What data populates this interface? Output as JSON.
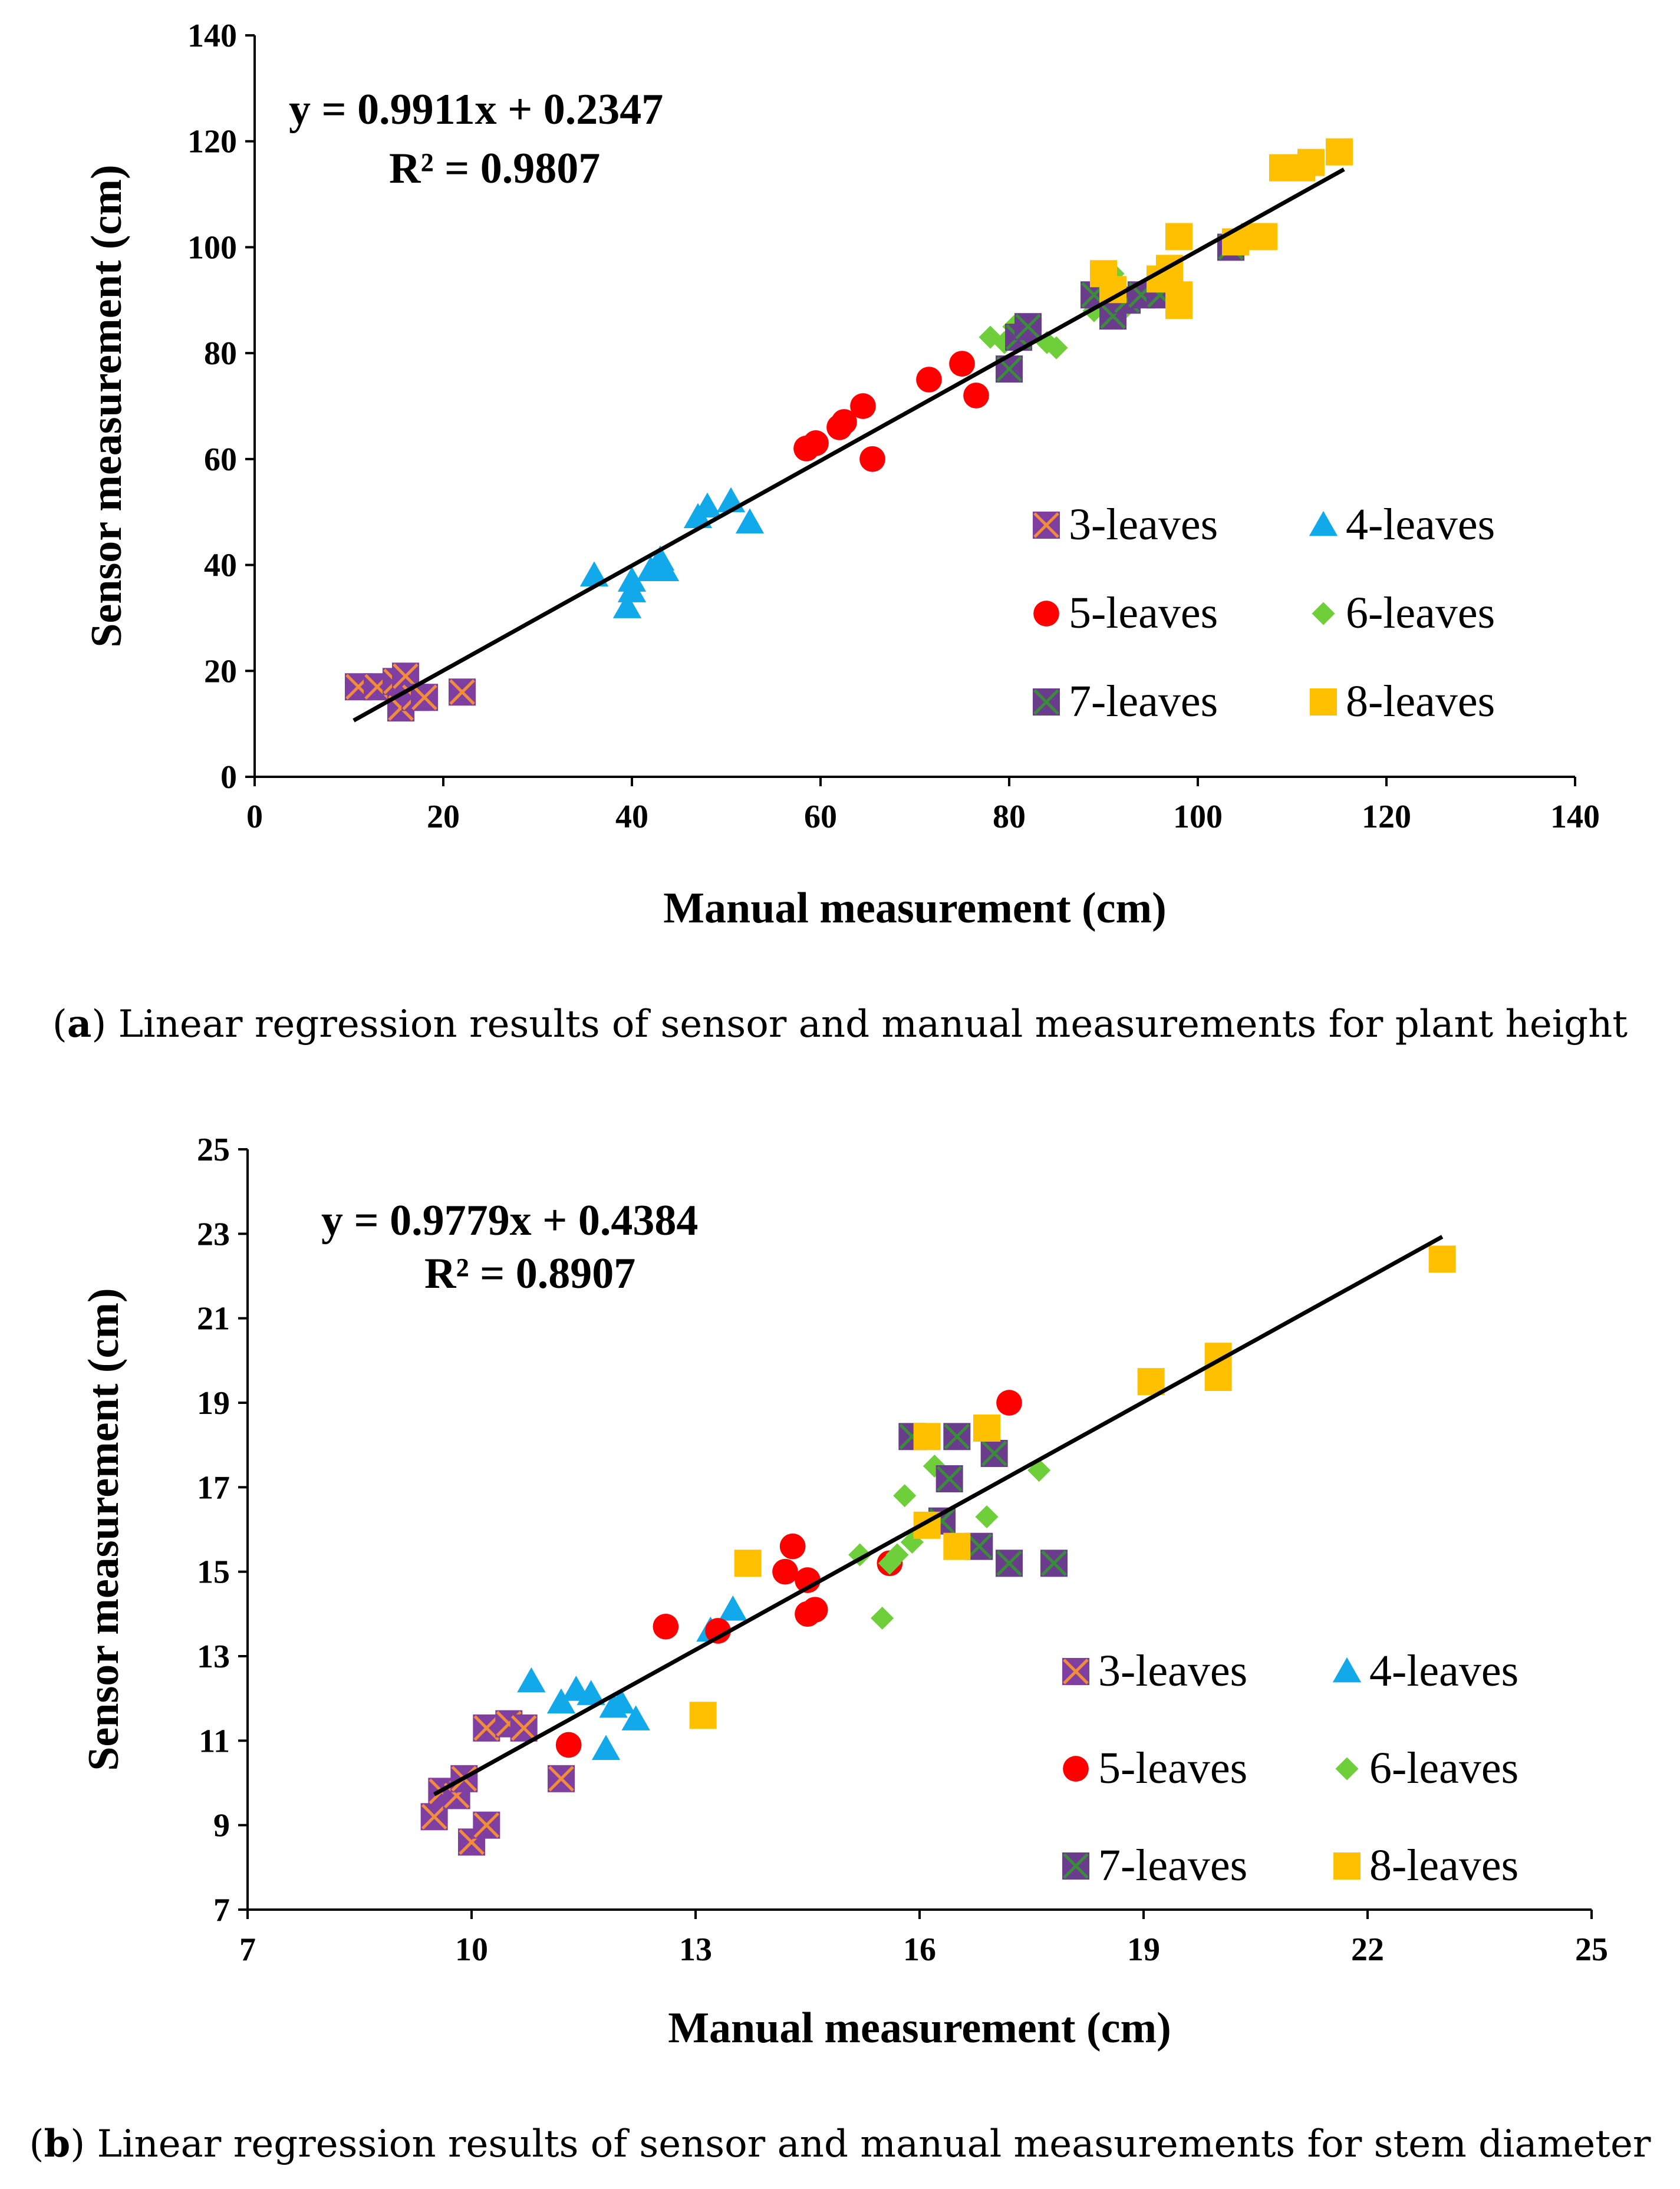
{
  "colors": {
    "3-leaves-fill": "#7f3fa0",
    "3-leaves-cross": "#f28c3a",
    "4-leaves": "#11a9ea",
    "5-leaves": "#ff0000",
    "6-leaves": "#6fcf3a",
    "7-leaves-fill": "#6a3d8c",
    "7-leaves-cross": "#3a8c3a",
    "8-leaves": "#ffc000",
    "regression": "#000000"
  },
  "captions": [
    {
      "label": "a",
      "text": " Linear regression results of sensor and manual measurements for plant height"
    },
    {
      "label": "b",
      "text": " Linear regression results of sensor and manual measurements for stem diameter"
    }
  ],
  "chart_data": [
    {
      "type": "scatter",
      "xlabel": "Manual measurement (cm)",
      "ylabel": "Sensor measurement (cm)",
      "xlim": [
        0,
        140
      ],
      "ylim": [
        0,
        140
      ],
      "xticks": [
        0,
        20,
        40,
        60,
        80,
        100,
        120,
        140
      ],
      "yticks": [
        0,
        20,
        40,
        60,
        80,
        100,
        120,
        140
      ],
      "grid": false,
      "legend_position": "bottom-right",
      "annotations": [
        "y = 0.9911x + 0.2347",
        "R² = 0.9807"
      ],
      "regression": {
        "slope": 0.9911,
        "intercept": 0.2347,
        "x_range": [
          10.5,
          115.5
        ]
      },
      "series": [
        {
          "name": "3-leaves",
          "marker": "square-cross",
          "points": [
            [
              11,
              17
            ],
            [
              13,
              17
            ],
            [
              15,
              18
            ],
            [
              15.5,
              13
            ],
            [
              16,
              19
            ],
            [
              17,
              15
            ],
            [
              18,
              15
            ],
            [
              22,
              16
            ]
          ]
        },
        {
          "name": "4-leaves",
          "marker": "triangle",
          "points": [
            [
              36,
              38
            ],
            [
              39.5,
              32
            ],
            [
              40,
              35
            ],
            [
              40,
              37
            ],
            [
              42,
              39
            ],
            [
              43,
              41
            ],
            [
              43.5,
              39
            ],
            [
              47,
              49
            ],
            [
              48,
              51
            ],
            [
              50.5,
              52
            ],
            [
              52.5,
              48
            ]
          ]
        },
        {
          "name": "5-leaves",
          "marker": "circle",
          "points": [
            [
              58.5,
              62
            ],
            [
              59.5,
              63
            ],
            [
              62,
              66
            ],
            [
              62.5,
              67
            ],
            [
              64.5,
              70
            ],
            [
              65.5,
              60
            ],
            [
              71.5,
              75
            ],
            [
              75,
              78
            ],
            [
              76.5,
              72
            ]
          ]
        },
        {
          "name": "6-leaves",
          "marker": "diamond",
          "points": [
            [
              78,
              83
            ],
            [
              79.5,
              82
            ],
            [
              80.5,
              85
            ],
            [
              82,
              83
            ],
            [
              84,
              82
            ],
            [
              85,
              81
            ],
            [
              89,
              88
            ],
            [
              90,
              89
            ],
            [
              91,
              95
            ],
            [
              92,
              88
            ],
            [
              95,
              91
            ]
          ]
        },
        {
          "name": "7-leaves",
          "marker": "square-cross",
          "points": [
            [
              80,
              77
            ],
            [
              81,
              83
            ],
            [
              82,
              85
            ],
            [
              89,
              91
            ],
            [
              91,
              87
            ],
            [
              92.5,
              90
            ],
            [
              94,
              91
            ],
            [
              96,
              91
            ],
            [
              103.5,
              100
            ]
          ]
        },
        {
          "name": "8-leaves",
          "marker": "square",
          "points": [
            [
              90,
              95
            ],
            [
              91,
              92
            ],
            [
              96,
              94
            ],
            [
              97,
              96
            ],
            [
              98,
              89
            ],
            [
              98,
              91
            ],
            [
              98,
              102
            ],
            [
              104,
              101
            ],
            [
              106,
              102
            ],
            [
              107,
              102
            ],
            [
              109,
              115
            ],
            [
              111,
              115
            ],
            [
              112,
              116
            ],
            [
              115,
              118
            ]
          ]
        }
      ]
    },
    {
      "type": "scatter",
      "xlabel": "Manual measurement (cm)",
      "ylabel": "Sensor measurement (cm)",
      "xlim": [
        7,
        25
      ],
      "ylim": [
        7,
        25
      ],
      "xticks": [
        7,
        10,
        13,
        16,
        19,
        22,
        25
      ],
      "yticks": [
        7,
        9,
        11,
        13,
        15,
        17,
        19,
        21,
        23,
        25
      ],
      "grid": false,
      "legend_position": "bottom-right",
      "annotations": [
        "y = 0.9779x + 0.4384",
        "R² = 0.8907"
      ],
      "regression": {
        "slope": 0.9779,
        "intercept": 0.4384,
        "x_range": [
          9.5,
          23
        ]
      },
      "series": [
        {
          "name": "3-leaves",
          "marker": "square-cross",
          "points": [
            [
              9.5,
              9.2
            ],
            [
              9.6,
              9.8
            ],
            [
              9.8,
              9.7
            ],
            [
              9.9,
              10.1
            ],
            [
              10,
              8.6
            ],
            [
              10.2,
              9
            ],
            [
              10.2,
              11.3
            ],
            [
              10.5,
              11.4
            ],
            [
              10.7,
              11.3
            ],
            [
              11.2,
              10.1
            ]
          ]
        },
        {
          "name": "4-leaves",
          "marker": "triangle",
          "points": [
            [
              10.8,
              12.4
            ],
            [
              11.2,
              11.9
            ],
            [
              11.4,
              12.2
            ],
            [
              11.6,
              12.1
            ],
            [
              11.8,
              10.8
            ],
            [
              11.9,
              11.8
            ],
            [
              12,
              11.9
            ],
            [
              12.2,
              11.5
            ],
            [
              13.2,
              13.6
            ],
            [
              13.5,
              14.1
            ]
          ]
        },
        {
          "name": "5-leaves",
          "marker": "circle",
          "points": [
            [
              11.3,
              10.9
            ],
            [
              12.6,
              13.7
            ],
            [
              13.3,
              13.6
            ],
            [
              14.2,
              15
            ],
            [
              14.3,
              15.6
            ],
            [
              14.5,
              14.8
            ],
            [
              14.5,
              14
            ],
            [
              14.6,
              14.1
            ],
            [
              15.6,
              15.2
            ],
            [
              17.2,
              19
            ]
          ]
        },
        {
          "name": "6-leaves",
          "marker": "diamond",
          "points": [
            [
              15.2,
              15.4
            ],
            [
              15.5,
              13.9
            ],
            [
              15.6,
              15.2
            ],
            [
              15.7,
              15.4
            ],
            [
              15.8,
              16.8
            ],
            [
              15.9,
              15.7
            ],
            [
              16.2,
              17.5
            ],
            [
              16.9,
              16.3
            ],
            [
              17.6,
              17.4
            ]
          ]
        },
        {
          "name": "7-leaves",
          "marker": "square-cross",
          "points": [
            [
              15.9,
              18.2
            ],
            [
              16.3,
              16.2
            ],
            [
              16.4,
              17.2
            ],
            [
              16.5,
              18.2
            ],
            [
              16.8,
              15.6
            ],
            [
              17,
              17.8
            ],
            [
              17.2,
              15.2
            ],
            [
              17.8,
              15.2
            ]
          ]
        },
        {
          "name": "8-leaves",
          "marker": "square",
          "points": [
            [
              13.1,
              11.6
            ],
            [
              13.7,
              15.2
            ],
            [
              16.1,
              16.1
            ],
            [
              16.1,
              18.2
            ],
            [
              16.5,
              15.6
            ],
            [
              16.9,
              18.4
            ],
            [
              19.1,
              19.5
            ],
            [
              20,
              19.6
            ],
            [
              20,
              20.1
            ],
            [
              23,
              22.4
            ]
          ]
        }
      ]
    }
  ]
}
